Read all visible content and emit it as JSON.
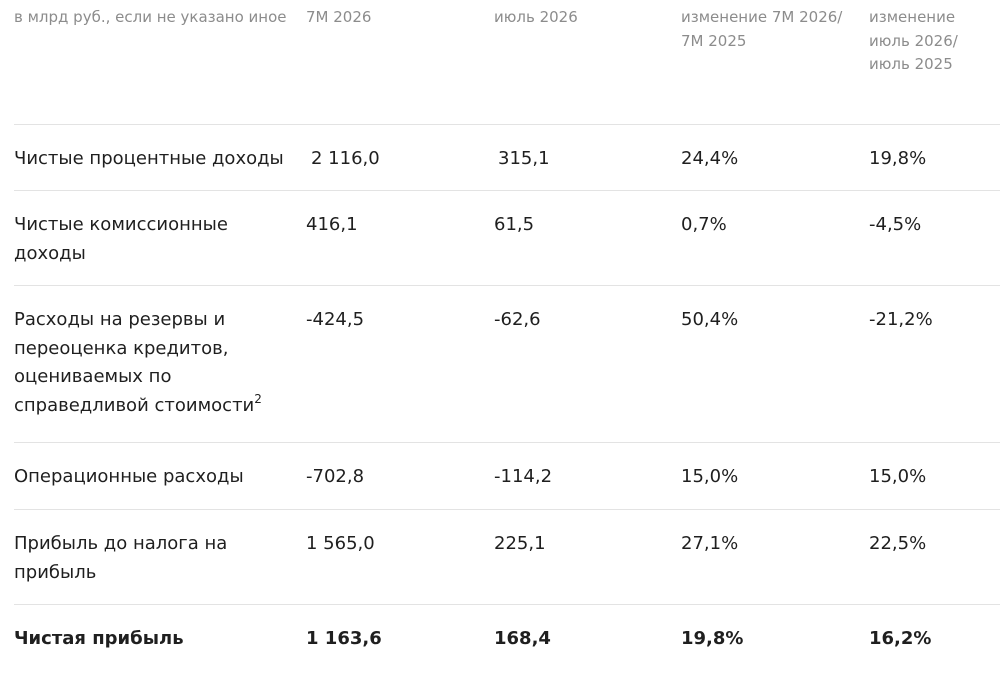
{
  "header": {
    "col0": "в млрд руб., если не указано иное",
    "col1": "7М 2026",
    "col2": "июль 2026",
    "col3_line1": "изменение 7М 2026/",
    "col3_line2": "7М 2025",
    "col4_line1": "изменение",
    "col4_line2": "июль 2026/",
    "col4_line3": "июль 2025"
  },
  "rows": [
    {
      "label_lines": [
        "Чистые процентные доходы"
      ],
      "ytd": "2 116,0",
      "month": "315,1",
      "chg_ytd": "24,4%",
      "chg_month": "19,8%"
    },
    {
      "label_lines": [
        "Чистые комиссионные",
        "доходы"
      ],
      "ytd": "416,1",
      "month": "61,5",
      "chg_ytd": "0,7%",
      "chg_month": "-4,5%"
    },
    {
      "label_lines": [
        "Расходы на резервы и",
        "переоценка кредитов,",
        "оцениваемых по",
        "справедливой стоимости"
      ],
      "footnote": "2",
      "ytd": "-424,5",
      "month": "-62,6",
      "chg_ytd": "50,4%",
      "chg_month": "-21,2%"
    },
    {
      "label_lines": [
        "Операционные расходы"
      ],
      "ytd": "-702,8",
      "month": "-114,2",
      "chg_ytd": "15,0%",
      "chg_month": "15,0%"
    },
    {
      "label_lines": [
        "Прибыль до налога на",
        "прибыль"
      ],
      "ytd": "1 565,0",
      "month": "225,1",
      "chg_ytd": "27,1%",
      "chg_month": "22,5%"
    },
    {
      "label_lines": [
        "Чистая прибыль"
      ],
      "ytd": "1 163,6",
      "month": "168,4",
      "chg_ytd": "19,8%",
      "chg_month": "16,2%"
    }
  ]
}
